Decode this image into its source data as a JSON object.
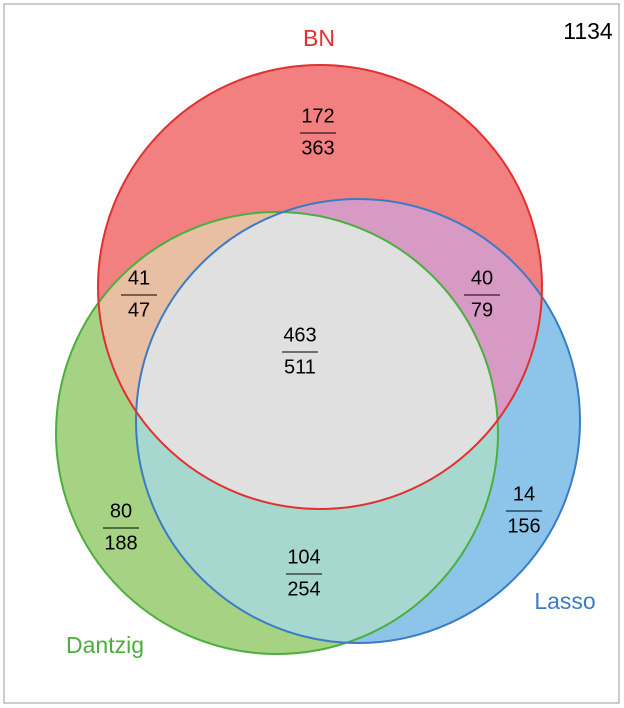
{
  "total": 1134,
  "sets": [
    {
      "label": "BN"
    },
    {
      "label": "Dantzig"
    },
    {
      "label": "Lasso"
    }
  ],
  "regions": [
    {
      "name": "BN only",
      "count": 172,
      "total": 363
    },
    {
      "name": "BN and Dantzig",
      "count": 41,
      "total": 47
    },
    {
      "name": "BN and Lasso",
      "count": 40,
      "total": 79
    },
    {
      "name": "All three",
      "count": 463,
      "total": 511
    },
    {
      "name": "Dantzig only",
      "count": 80,
      "total": 188
    },
    {
      "name": "Lasso only",
      "count": 14,
      "total": 156
    },
    {
      "name": "Dantzig and Lasso",
      "count": 104,
      "total": 254
    }
  ]
}
